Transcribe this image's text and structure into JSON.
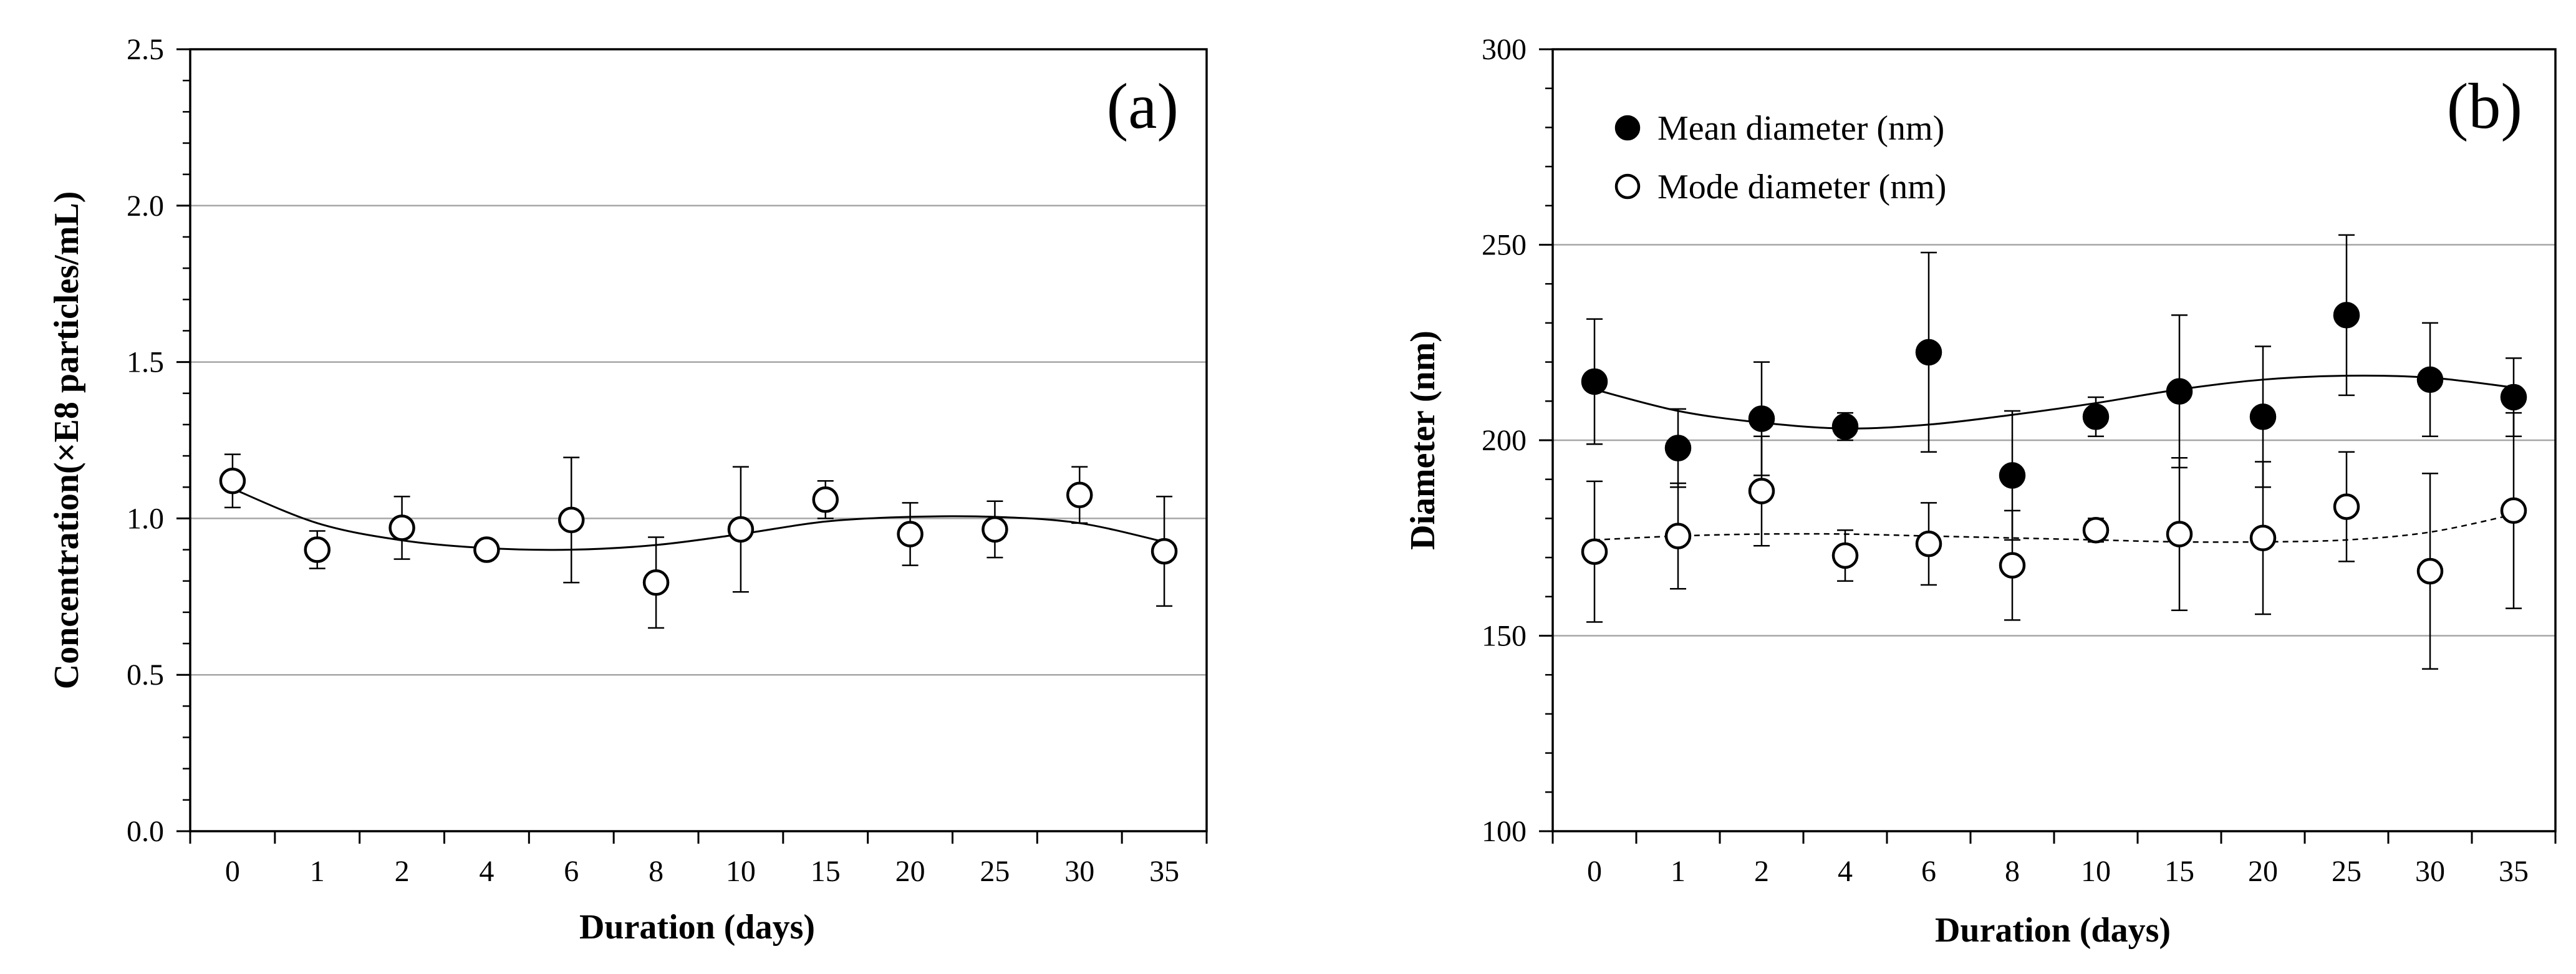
{
  "chart_data": [
    {
      "type": "scatter",
      "panel_label": "(a)",
      "categories": [
        "0",
        "1",
        "2",
        "4",
        "6",
        "8",
        "10",
        "15",
        "20",
        "25",
        "30",
        "35"
      ],
      "xlabel": "Duration (days)",
      "ylabel": "Concentration(×E8 particles/mL)",
      "ylim": [
        0,
        2.5
      ],
      "yticks": [
        "0.0",
        "0.5",
        "1.0",
        "1.5",
        "2.0",
        "2.5"
      ],
      "grid": true,
      "series": [
        {
          "name": "Concentration",
          "marker": "open-circle",
          "values": [
            1.12,
            0.9,
            0.97,
            0.9,
            0.995,
            0.795,
            0.965,
            1.06,
            0.95,
            0.965,
            1.075,
            0.895
          ],
          "errors": [
            0.085,
            0.06,
            0.1,
            0.025,
            0.2,
            0.145,
            0.2,
            0.06,
            0.1,
            0.09,
            0.09,
            0.175
          ],
          "trend": [
            1.095,
            0.985,
            0.93,
            0.905,
            0.9,
            0.915,
            0.95,
            0.99,
            1.005,
            1.005,
            0.985,
            0.925
          ],
          "trend_style": "solid"
        }
      ]
    },
    {
      "type": "scatter",
      "panel_label": "(b)",
      "categories": [
        "0",
        "1",
        "2",
        "4",
        "6",
        "8",
        "10",
        "15",
        "20",
        "25",
        "30",
        "35"
      ],
      "xlabel": "Duration (days)",
      "ylabel": "Diameter (nm)",
      "ylim": [
        100,
        300
      ],
      "yticks": [
        "100",
        "150",
        "200",
        "250",
        "300"
      ],
      "grid": true,
      "legend_position": "top-left",
      "series": [
        {
          "name": "Mean diameter (nm)",
          "marker": "filled-circle",
          "values": [
            215,
            198,
            205.5,
            203.5,
            222.5,
            191,
            206,
            212.5,
            206,
            232,
            215.5,
            211
          ],
          "errors": [
            16,
            10,
            14.5,
            3.5,
            25.5,
            16.5,
            5,
            19.5,
            18,
            20.5,
            14.5,
            10
          ],
          "trend": [
            213,
            207.5,
            204.5,
            203,
            204,
            206.5,
            209.5,
            213,
            215.5,
            216.5,
            216,
            213.5
          ],
          "trend_style": "solid"
        },
        {
          "name": "Mode diameter (nm)",
          "marker": "open-circle",
          "values": [
            171.5,
            175.5,
            187,
            170.5,
            173.5,
            168,
            177,
            176,
            175,
            183,
            166.5,
            182
          ],
          "errors": [
            18,
            13.5,
            14,
            6.5,
            10.5,
            14,
            3,
            19.5,
            19.5,
            14,
            25,
            25
          ],
          "trend": [
            174.5,
            175.5,
            176,
            176,
            175.5,
            175,
            174.5,
            174,
            174,
            174.5,
            176.5,
            181
          ],
          "trend_style": "dashed"
        }
      ]
    }
  ]
}
